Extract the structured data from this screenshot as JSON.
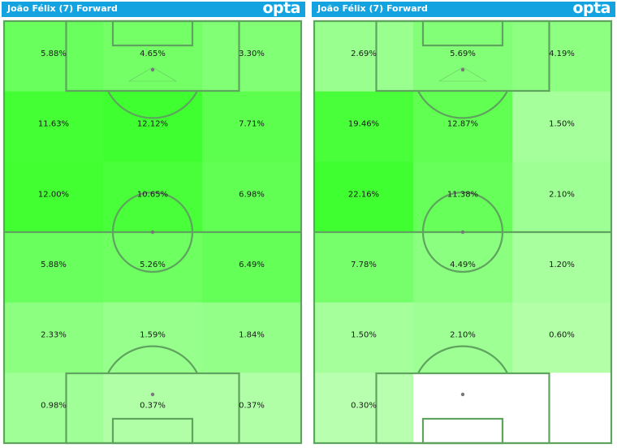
{
  "header": {
    "left_title": "João Félix (7) Forward",
    "right_title": "João Félix (7) Forward",
    "logo": "opta"
  },
  "colors": {
    "header_bg": "#13a3e0",
    "pitch_line": "#5ea35e",
    "pitch_line_muted": "#8a8a8a",
    "heat_high": "#40ff30",
    "heat_low": "#c8ffc0",
    "empty_zone": "#ffffff"
  },
  "chart_data": [
    {
      "type": "heatmap",
      "rows": 6,
      "cols": 3,
      "values": [
        [
          "5.88%",
          "4.65%",
          "3.30%"
        ],
        [
          "11.63%",
          "12.12%",
          "7.71%"
        ],
        [
          "12.00%",
          "10.65%",
          "6.98%"
        ],
        [
          "5.88%",
          "5.26%",
          "6.49%"
        ],
        [
          "2.33%",
          "1.59%",
          "1.84%"
        ],
        [
          "0.98%",
          "0.37%",
          "0.37%"
        ]
      ],
      "numeric": [
        [
          5.88,
          4.65,
          3.3
        ],
        [
          11.63,
          12.12,
          7.71
        ],
        [
          12.0,
          10.65,
          6.98
        ],
        [
          5.88,
          5.26,
          6.49
        ],
        [
          2.33,
          1.59,
          1.84
        ],
        [
          0.98,
          0.37,
          0.37
        ]
      ]
    },
    {
      "type": "heatmap",
      "rows": 6,
      "cols": 3,
      "values": [
        [
          "2.69%",
          "5.69%",
          "4.19%"
        ],
        [
          "19.46%",
          "12.87%",
          "1.50%"
        ],
        [
          "22.16%",
          "11.38%",
          "2.10%"
        ],
        [
          "7.78%",
          "4.49%",
          "1.20%"
        ],
        [
          "1.50%",
          "2.10%",
          "0.60%"
        ],
        [
          "0.30%",
          "",
          ""
        ]
      ],
      "numeric": [
        [
          2.69,
          5.69,
          4.19
        ],
        [
          19.46,
          12.87,
          1.5
        ],
        [
          22.16,
          11.38,
          2.1
        ],
        [
          7.78,
          4.49,
          1.2
        ],
        [
          1.5,
          2.1,
          0.6
        ],
        [
          0.3,
          0,
          0
        ]
      ]
    }
  ]
}
